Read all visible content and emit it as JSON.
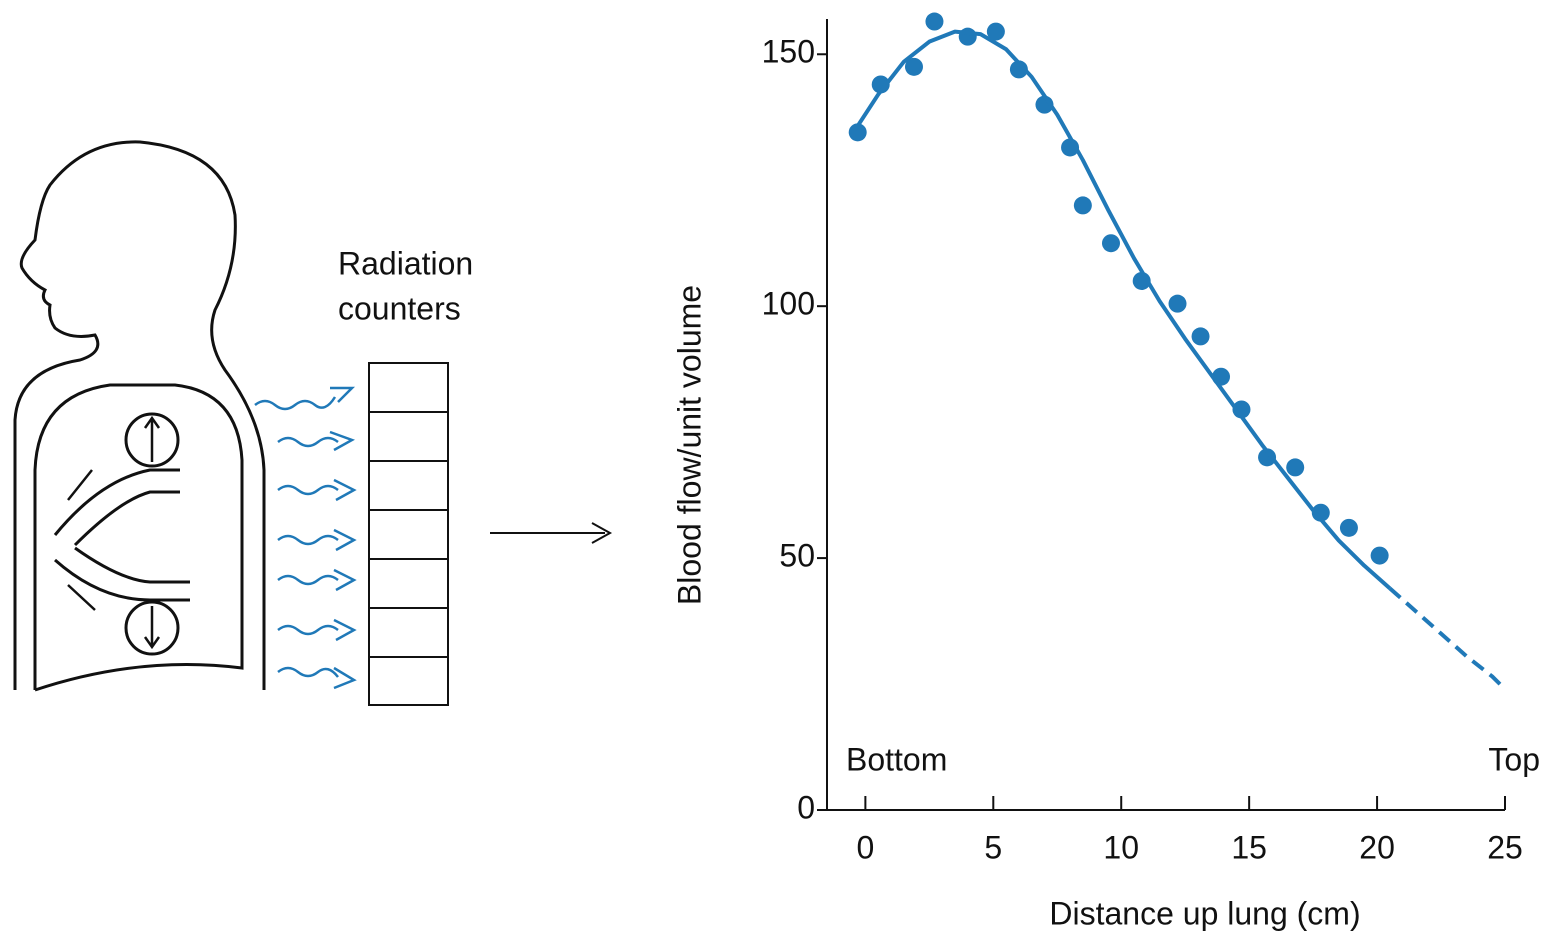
{
  "diagram": {
    "label": [
      "Radiation",
      "counters"
    ]
  },
  "chart_data": {
    "type": "scatter",
    "y_label": "Blood flow/unit volume",
    "x_label": "Distance up lung (cm)",
    "annotations": [
      "Bottom",
      "Top"
    ],
    "xlim": [
      -1.5,
      25
    ],
    "xticks": [
      0,
      5,
      10,
      15,
      20,
      25
    ],
    "ylim": [
      0,
      157
    ],
    "yticks": [
      0,
      50,
      100,
      150
    ],
    "series": [
      {
        "style": "points",
        "color": "#2079b8",
        "x": [
          -0.3,
          0.6,
          1.9,
          2.7,
          4.0,
          5.1,
          6.0,
          7.0,
          8.0,
          8.5,
          9.6,
          10.8,
          12.2,
          13.1,
          13.9,
          14.7,
          15.7,
          16.8,
          17.8,
          18.9,
          20.1
        ],
        "values": [
          134.5,
          144,
          147.5,
          156.5,
          153.5,
          154.5,
          147,
          140,
          131.5,
          120,
          112.5,
          105,
          100.5,
          94,
          86,
          79.5,
          70,
          68,
          59,
          56,
          50.5
        ]
      },
      {
        "style": "solid",
        "color": "#2079b8",
        "x": [
          -0.4,
          0.5,
          1.5,
          2.5,
          3.5,
          4.5,
          5.5,
          6.5,
          7.5,
          8.5,
          9.5,
          10.5,
          11.5,
          12.5,
          13.5,
          14.5,
          15.5,
          16.5,
          17.5,
          18.5,
          19.5,
          20.5
        ],
        "values": [
          135,
          142,
          148.5,
          152.5,
          154.5,
          154,
          151,
          145.5,
          138,
          129,
          119,
          109.5,
          101,
          93.5,
          86.5,
          79.5,
          72.5,
          66,
          59.5,
          53.5,
          48.5,
          44
        ]
      },
      {
        "style": "dashed",
        "color": "#2079b8",
        "x": [
          20.5,
          21.5,
          22.5,
          23.5,
          24.5,
          25
        ],
        "values": [
          44,
          39.5,
          35,
          30.5,
          26.5,
          24
        ]
      }
    ]
  }
}
